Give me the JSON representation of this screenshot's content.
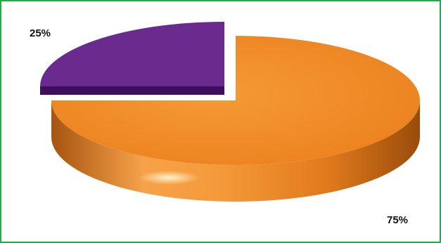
{
  "chart_data": {
    "type": "pie",
    "style": "3d",
    "slices": [
      {
        "value": 25,
        "label": "25%",
        "color": "#6a2a8e"
      },
      {
        "value": 75,
        "label": "75%",
        "color": "#f08a24"
      }
    ]
  },
  "colors": {
    "frame_border": "#2aa84a",
    "minor_slice": "#6a2a8e",
    "minor_slice_dark": "#3c0f5c",
    "major_slice": "#f08a24",
    "major_side_dark": "#b35a12"
  }
}
